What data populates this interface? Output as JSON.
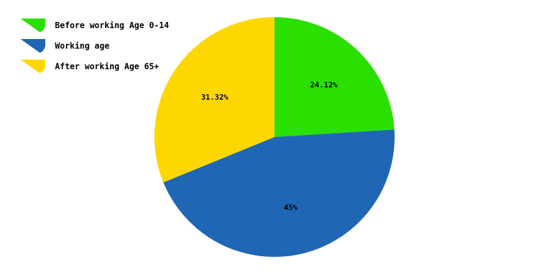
{
  "chart_data": {
    "type": "pie",
    "title": "",
    "legend_position": "top-left",
    "slices": [
      {
        "label": "Before working Age 0-14",
        "value": 24.12,
        "display": "24.12%",
        "color": "#29e000"
      },
      {
        "label": "Working age",
        "value": 45,
        "display": "45%",
        "color": "#1f66b4"
      },
      {
        "label": "After working Age 65+",
        "value": 31.32,
        "display": "31.32%",
        "color": "#ffd700"
      }
    ]
  }
}
